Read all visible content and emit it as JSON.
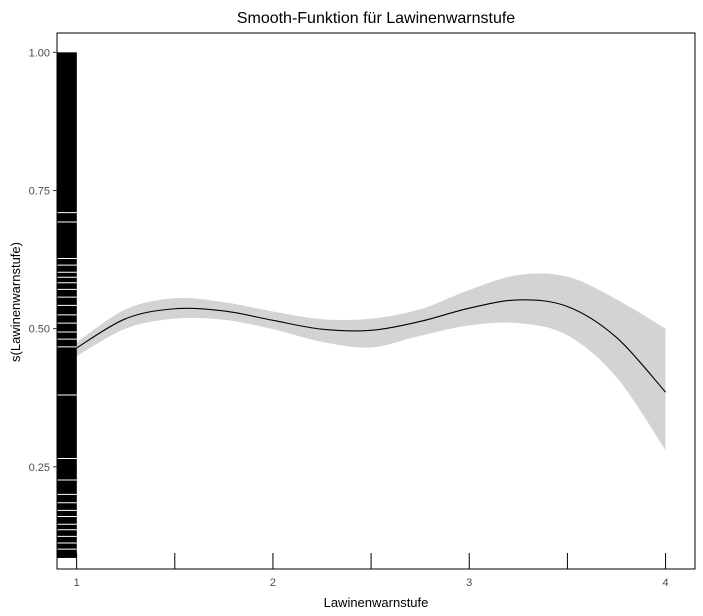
{
  "chart_data": {
    "type": "line",
    "title": "Smooth-Funktion für Lawinenwarnstufe",
    "xlabel": "Lawinenwarnstufe",
    "ylabel": "s(Lawinenwarnstufe)",
    "xlim": [
      0.9,
      4.15
    ],
    "ylim": [
      0.065,
      1.035
    ],
    "x_ticks": [
      1,
      2,
      3,
      4
    ],
    "x_tick_labels": [
      "1",
      "2",
      "3",
      "4"
    ],
    "y_ticks": [
      0.25,
      0.5,
      0.75,
      1.0
    ],
    "y_tick_labels": [
      "0.25",
      "0.50",
      "0.75",
      "1.00"
    ],
    "x_minor_ticks": [
      1.5,
      2.5,
      3.5
    ],
    "grid": false,
    "colors": {
      "line": "#000000",
      "band": "#d3d3d3",
      "rug": "#000000",
      "frame": "#000000"
    },
    "series": [
      {
        "x": [
          1.0,
          1.25,
          1.5,
          1.75,
          2.0,
          2.25,
          2.5,
          2.75,
          3.0,
          3.25,
          3.5,
          3.75,
          4.0
        ],
        "y": [
          0.465,
          0.518,
          0.536,
          0.532,
          0.515,
          0.499,
          0.497,
          0.513,
          0.537,
          0.552,
          0.54,
          0.484,
          0.385
        ],
        "lower": [
          0.45,
          0.5,
          0.518,
          0.516,
          0.499,
          0.476,
          0.466,
          0.487,
          0.506,
          0.51,
          0.488,
          0.412,
          0.28
        ],
        "upper": [
          0.475,
          0.535,
          0.555,
          0.548,
          0.531,
          0.517,
          0.518,
          0.535,
          0.57,
          0.597,
          0.594,
          0.553,
          0.5
        ]
      }
    ],
    "rug": {
      "x": 0.95,
      "ymin": 0.085,
      "ymax": 1.0,
      "white_gaps": [
        0.101,
        0.112,
        0.124,
        0.136,
        0.146,
        0.16,
        0.171,
        0.185,
        0.2,
        0.226,
        0.265,
        0.38,
        0.467,
        0.481,
        0.494,
        0.51,
        0.525,
        0.542,
        0.557,
        0.571,
        0.583,
        0.593,
        0.602,
        0.615,
        0.627,
        0.693,
        0.71
      ]
    }
  }
}
